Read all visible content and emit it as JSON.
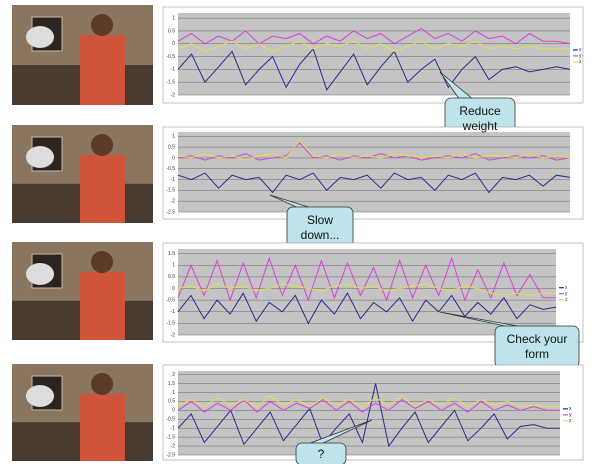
{
  "panels": [
    {
      "chart": {
        "type": "line",
        "ylim": [
          -2,
          1.2
        ],
        "yticks": [
          1,
          0.5,
          0,
          -0.5,
          -1,
          -1.5,
          -2
        ],
        "grid": true,
        "legend": true,
        "series": [
          {
            "name": "x",
            "color": "#2a2a8c",
            "values": [
              -1,
              -0.4,
              -1.5,
              -0.9,
              -0.3,
              -1.6,
              -1,
              -0.5,
              -1.7,
              -0.8,
              -0.2,
              -1.8,
              -1.1,
              -0.4,
              -1.6,
              -0.9,
              -0.3,
              -1.5,
              -1,
              -0.6,
              -1.7,
              -1,
              -0.5,
              -1.4,
              -1,
              -0.9,
              -1.1,
              -1,
              -0.9,
              -1
            ]
          },
          {
            "name": "y",
            "color": "#e03ce0",
            "values": [
              0.1,
              0.4,
              0,
              0.3,
              0.1,
              0.5,
              0,
              0.3,
              0.2,
              0.4,
              0,
              0.3,
              0.1,
              0.5,
              0.2,
              0.4,
              0,
              0.3,
              0.6,
              0.2,
              0.4,
              0.1,
              0.5,
              0.2,
              0.3,
              0,
              0.4,
              0.1,
              0.1,
              0
            ]
          },
          {
            "name": "z",
            "color": "#e6e04a",
            "values": [
              -0.2,
              0,
              -0.3,
              -0.1,
              0.1,
              -0.2,
              0,
              -0.3,
              -0.1,
              0.1,
              -0.2,
              0,
              -0.1,
              0.1,
              -0.2,
              0,
              -0.3,
              -0.1,
              0.1,
              -0.2,
              0,
              -0.1,
              0.1,
              -0.2,
              -0.1,
              -0.2,
              -0.1,
              -0.2,
              -0.2,
              -0.2
            ]
          }
        ]
      },
      "callout": "Reduce weight"
    },
    {
      "chart": {
        "type": "line",
        "ylim": [
          -2.5,
          1.2
        ],
        "yticks": [
          1,
          0.5,
          0,
          -0.5,
          -1,
          -1.5,
          -2,
          -2.5
        ],
        "grid": true,
        "legend": false,
        "series": [
          {
            "name": "x",
            "color": "#2a2a8c",
            "values": [
              -0.8,
              -1,
              -0.7,
              -1.4,
              -0.8,
              -1,
              -0.9,
              -1.6,
              -0.8,
              -1,
              -0.7,
              -1.5,
              -0.9,
              -1,
              -0.8,
              -1.4,
              -0.7,
              -1,
              -0.9,
              -1.5,
              -0.8,
              -1,
              -0.7,
              -1.6,
              -0.9,
              -1,
              -0.8,
              -1.3,
              -0.8,
              -0.9
            ]
          },
          {
            "name": "y",
            "color": "#e03ce0",
            "values": [
              0,
              0.1,
              -0.1,
              0.1,
              0,
              0.2,
              -0.1,
              0,
              0.1,
              0.7,
              0,
              0.1,
              -0.1,
              0.1,
              0,
              0.2,
              0,
              0.1,
              -0.1,
              0,
              0.1,
              0,
              0.2,
              -0.1,
              0,
              0.1,
              0,
              0.1,
              -0.1,
              0
            ]
          },
          {
            "name": "z",
            "color": "#e6e04a",
            "values": [
              0.1,
              0,
              0.2,
              0,
              0.1,
              -0.1,
              0.1,
              0.2,
              0,
              0.8,
              0.1,
              0,
              0.2,
              0,
              0.1,
              0,
              0.2,
              0.1,
              0,
              0.1,
              0,
              0.2,
              0,
              0.1,
              0.1,
              0,
              0.2,
              0,
              0.1,
              0
            ]
          }
        ]
      },
      "callout": "Slow down..."
    },
    {
      "chart": {
        "type": "line",
        "ylim": [
          -2,
          1.7
        ],
        "yticks": [
          1.5,
          1,
          0.5,
          0,
          -0.5,
          -1,
          -1.5,
          -2
        ],
        "grid": true,
        "legend": true,
        "series": [
          {
            "name": "x",
            "color": "#2a2a8c",
            "values": [
              -1,
              -0.3,
              -1.3,
              -0.5,
              -1.1,
              -0.2,
              -1.4,
              -0.6,
              -1,
              -0.3,
              -1.5,
              -0.5,
              -1.1,
              -0.2,
              -1.3,
              -0.6,
              -1,
              -0.4,
              -1.4,
              -0.5,
              -1,
              -0.3,
              -1.2,
              -0.6,
              -1.1,
              -0.4,
              -1.3,
              -0.7,
              -0.9,
              -0.8
            ]
          },
          {
            "name": "y",
            "color": "#e03ce0",
            "values": [
              -0.4,
              1,
              -0.3,
              1.2,
              -0.5,
              1.1,
              -0.4,
              1.3,
              -0.3,
              1,
              -0.5,
              1.2,
              -0.4,
              1.1,
              -0.3,
              0.9,
              -0.5,
              1.2,
              -0.4,
              1,
              -0.3,
              1.3,
              -0.5,
              0.8,
              -0.4,
              1.1,
              -0.3,
              0.6,
              -0.4,
              -0.4
            ]
          },
          {
            "name": "z",
            "color": "#e6e04a",
            "values": [
              0,
              0.1,
              -0.1,
              0.2,
              0,
              0.1,
              -0.1,
              0,
              0.2,
              0.1,
              0,
              -0.1,
              0.1,
              0.2,
              0,
              0.1,
              -0.1,
              0,
              0.1,
              0.2,
              0,
              -0.1,
              0.1,
              0,
              -0.2,
              -0.3,
              -0.2,
              -0.3,
              -0.2,
              -0.2
            ]
          }
        ]
      },
      "callout": "Check your form"
    },
    {
      "chart": {
        "type": "line",
        "ylim": [
          -2.5,
          2.2
        ],
        "yticks": [
          2,
          1.5,
          1,
          0.5,
          0,
          -0.5,
          -1,
          -1.5,
          -2,
          -2.5
        ],
        "grid": true,
        "legend": true,
        "series": [
          {
            "name": "x",
            "color": "#2a2a8c",
            "values": [
              -1,
              -0.2,
              -1.8,
              -0.9,
              0,
              -1.9,
              -1,
              -0.1,
              -1.7,
              -0.8,
              0.1,
              -1.9,
              -1,
              -0.2,
              -1.8,
              1.5,
              -2,
              -1,
              -0.1,
              -1.8,
              -0.9,
              0,
              -1.7,
              -1,
              -0.2,
              -1.6,
              -0.9,
              -0.8,
              -1,
              -1
            ]
          },
          {
            "name": "y",
            "color": "#e03ce0",
            "values": [
              0,
              0.5,
              -0.1,
              0.4,
              0,
              0.6,
              -0.1,
              0.5,
              0,
              0.4,
              0.1,
              0.6,
              0,
              0.5,
              -0.1,
              0.4,
              0,
              0.6,
              0.1,
              0.5,
              0,
              0.4,
              -0.1,
              0.5,
              0,
              0.3,
              0,
              0.2,
              0,
              0
            ]
          },
          {
            "name": "z",
            "color": "#e6e04a",
            "values": [
              0.3,
              0.6,
              0.2,
              0.7,
              0.3,
              0.6,
              0.2,
              0.8,
              0.3,
              0.6,
              0.2,
              0.7,
              0.3,
              0.6,
              0.2,
              0.7,
              0.3,
              0.8,
              0.2,
              0.6,
              0.3,
              0.7,
              0.2,
              0.6,
              0.3,
              0.5,
              0.2,
              0.3,
              0.2,
              0.2
            ]
          }
        ]
      },
      "callout": "?"
    }
  ]
}
